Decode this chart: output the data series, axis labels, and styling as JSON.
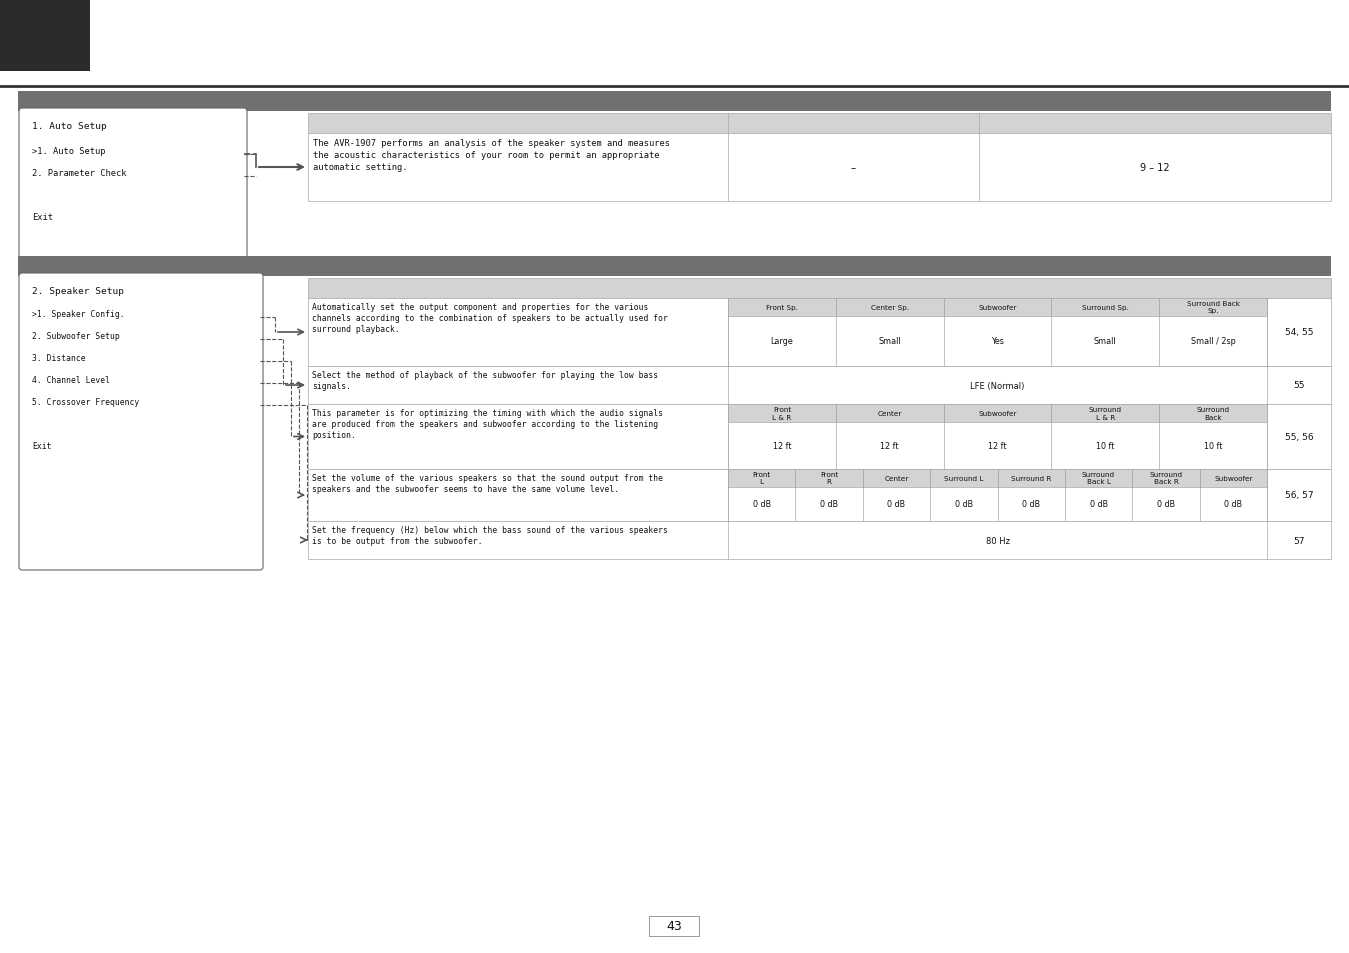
{
  "page_bg": "#ffffff",
  "dark_header_color": "#2b2b2b",
  "section_header_color": "#707070",
  "table_header_color": "#d3d3d3",
  "table_border": "#aaaaaa",
  "box_border": "#666666",
  "text_color": "#111111",
  "page_number": "43",
  "s1_desc": "The AVR-1907 performs an analysis of the speaker system and measures\nthe acoustic characteristics of your room to permit an appropriate\nautomatic setting.",
  "s1_default": "–",
  "s1_page": "9 – 12",
  "s1_menu_title": "1. Auto Setup",
  "s1_menu": [
    ">1. Auto Setup",
    "2. Parameter Check",
    "",
    "Exit"
  ],
  "s2_menu_title": "2. Speaker Setup",
  "s2_menu": [
    ">1. Speaker Config.",
    "2. Subwoofer Setup",
    "3. Distance",
    "4. Channel Level",
    "5. Crossover Frequency",
    "",
    "Exit"
  ],
  "s2_rows": [
    {
      "desc": "Automatically set the output component and properties for the various\nchannels according to the combination of speakers to be actually used for\nsurround playback.",
      "sub_headers": [
        "Front Sp.",
        "Center Sp.",
        "Subwoofer",
        "Surround Sp.",
        "Surround Back\nSp."
      ],
      "defaults": [
        "Large",
        "Small",
        "Yes",
        "Small",
        "Small / 2sp"
      ],
      "page": "54, 55"
    },
    {
      "desc": "Select the method of playback of the subwoofer for playing the low bass\nsignals.",
      "sub_headers": [],
      "defaults": [
        "LFE (Normal)"
      ],
      "page": "55"
    },
    {
      "desc": "This parameter is for optimizing the timing with which the audio signals\nare produced from the speakers and subwoofer according to the listening\nposition.",
      "sub_headers": [
        "Front\nL & R",
        "Center",
        "Subwoofer",
        "Surround\nL & R",
        "Surround\nBack"
      ],
      "defaults": [
        "12 ft",
        "12 ft",
        "12 ft",
        "10 ft",
        "10 ft"
      ],
      "page": "55, 56"
    },
    {
      "desc": "Set the volume of the various speakers so that the sound output from the\nspeakers and the subwoofer seems to have the same volume level.",
      "sub_headers": [
        "Front\nL",
        "Front\nR",
        "Center",
        "Surround L",
        "Surround R",
        "Surround\nBack L",
        "Surround\nBack R",
        "Subwoofer"
      ],
      "defaults": [
        "0 dB",
        "0 dB",
        "0 dB",
        "0 dB",
        "0 dB",
        "0 dB",
        "0 dB",
        "0 dB"
      ],
      "page": "56, 57"
    },
    {
      "desc": "Set the frequency (Hz) below which the bass sound of the various speakers\nis to be output from the subwoofer.",
      "sub_headers": [],
      "defaults": [
        "80 Hz"
      ],
      "page": "57"
    }
  ]
}
